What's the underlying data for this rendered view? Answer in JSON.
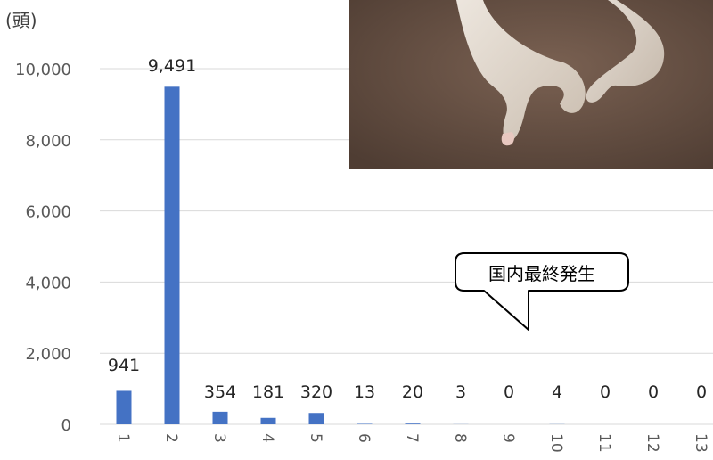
{
  "chart_data": {
    "type": "bar",
    "y_unit_label": "(頭)",
    "categories": [
      "1",
      "2",
      "3",
      "4",
      "5",
      "6",
      "7",
      "8",
      "9",
      "10",
      "11",
      "12",
      "13"
    ],
    "values": [
      941,
      9491,
      354,
      181,
      320,
      13,
      20,
      3,
      0,
      4,
      0,
      0,
      0
    ],
    "data_labels": [
      "941",
      "9,491",
      "354",
      "181",
      "320",
      "13",
      "20",
      "3",
      "0",
      "4",
      "0",
      "0",
      "0"
    ],
    "yticks": [
      0,
      2000,
      4000,
      6000,
      8000,
      10000
    ],
    "ytick_labels": [
      "0",
      "2,000",
      "4,000",
      "6,000",
      "8,000",
      "10,000"
    ],
    "ylim": [
      0,
      10000
    ],
    "grid": true,
    "bar_color": "#4472c4",
    "grid_color": "#d9d9d9"
  },
  "callout": {
    "text": "国内最終発生"
  },
  "photo": {
    "background_color": "#6b5446",
    "animal_color": "#e6ddd4"
  }
}
